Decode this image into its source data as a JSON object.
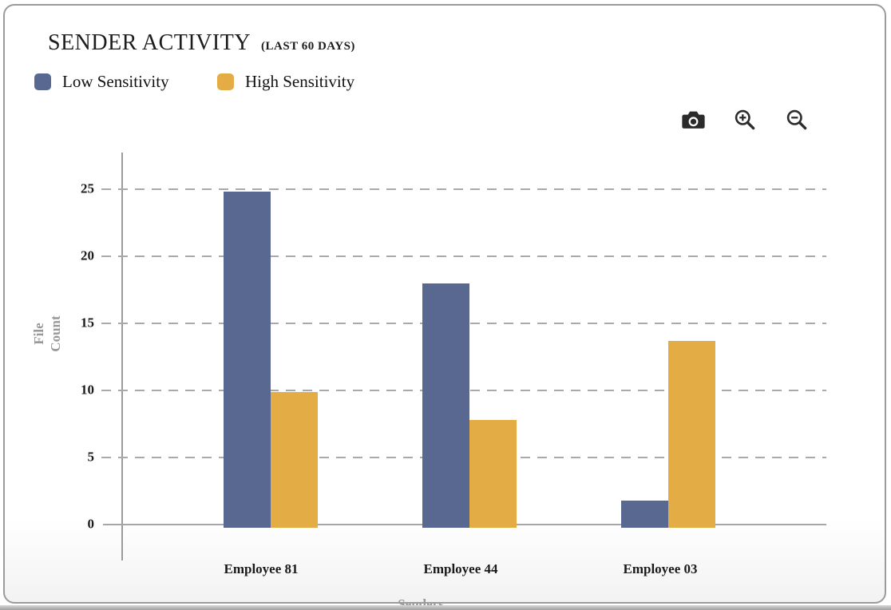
{
  "header": {
    "title": "SENDER ACTIVITY",
    "subtitle": "(LAST 60 DAYS)"
  },
  "legend": {
    "items": [
      {
        "label": "Low Sensitivity",
        "color": "#596890"
      },
      {
        "label": "High Sensitivity",
        "color": "#E4AC44"
      }
    ]
  },
  "toolbar": {
    "icons": [
      "camera-icon",
      "zoom-in-icon",
      "zoom-out-icon"
    ]
  },
  "chart_data": {
    "type": "bar",
    "title": "SENDER ACTIVITY",
    "subtitle": "(LAST 60 DAYS)",
    "categories": [
      "Employee 81",
      "Employee 44",
      "Employee 03"
    ],
    "series": [
      {
        "name": "Low Sensitivity",
        "color": "#596890",
        "values": [
          24.8,
          18,
          1.8
        ]
      },
      {
        "name": "High Sensitivity",
        "color": "#E4AC44",
        "values": [
          9.9,
          7.8,
          13.7
        ]
      }
    ],
    "xlabel": "Senders",
    "ylabel": "File Count",
    "yticks": [
      0,
      5,
      10,
      15,
      20,
      25
    ],
    "ylim": [
      0,
      27.8
    ],
    "grid": "dashed-horizontal",
    "legend_position": "top-left",
    "axis_color": "#9b9b9b",
    "grid_color": "#a9a9a9",
    "tick_label_color": "#1a1a1a",
    "axis_title_color": "#999999"
  }
}
